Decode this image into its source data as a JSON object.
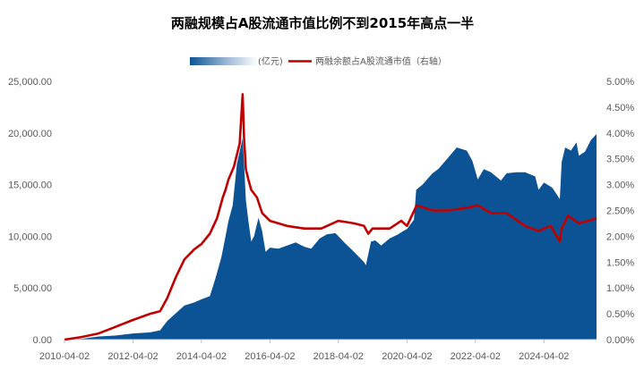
{
  "chart_data": {
    "type": "area+line",
    "title": "两融规模占A股流通市值比例不到2015年高点一半",
    "legend": {
      "position": "top",
      "items": [
        {
          "label": "(亿元)",
          "color": "#0b5394",
          "kind": "area"
        },
        {
          "label": "两融余额占A股流通市值（右轴）",
          "color": "#c00000",
          "kind": "line"
        }
      ]
    },
    "x_tick_labels": [
      "2010-04-02",
      "2012-04-02",
      "2014-04-02",
      "2016-04-02",
      "2018-04-02",
      "2020-04-02",
      "2022-04-02",
      "2024-04-02"
    ],
    "x_range": [
      "2010-04-02",
      "2025-10-15"
    ],
    "y_left": {
      "min": 0,
      "max": 25000,
      "ticks": [
        "0.00",
        "5,000.00",
        "10,000.00",
        "15,000.00",
        "20,000.00",
        "25,000.00"
      ]
    },
    "y_right": {
      "min": 0,
      "max": 5,
      "unit": "%",
      "ticks": [
        "0.00%",
        "0.50%",
        "1.00%",
        "1.50%",
        "2.00%",
        "2.50%",
        "3.00%",
        "3.50%",
        "4.00%",
        "4.50%",
        "5.00%"
      ]
    },
    "grid": false,
    "series": [
      {
        "label": "(亿元)",
        "axis": "left",
        "type": "area",
        "color": "#0b5394",
        "points": [
          [
            "2010-04-02",
            0
          ],
          [
            "2010-10-01",
            80
          ],
          [
            "2011-04-01",
            300
          ],
          [
            "2011-10-01",
            400
          ],
          [
            "2012-04-02",
            600
          ],
          [
            "2012-10-01",
            700
          ],
          [
            "2013-01-15",
            900
          ],
          [
            "2013-04-01",
            1800
          ],
          [
            "2013-10-01",
            3300
          ],
          [
            "2014-01-15",
            3600
          ],
          [
            "2014-04-02",
            3900
          ],
          [
            "2014-07-01",
            4200
          ],
          [
            "2014-09-01",
            6000
          ],
          [
            "2014-11-01",
            8000
          ],
          [
            "2014-12-15",
            10000
          ],
          [
            "2015-01-15",
            11500
          ],
          [
            "2015-03-01",
            13000
          ],
          [
            "2015-04-15",
            17000
          ],
          [
            "2015-06-15",
            19500
          ],
          [
            "2015-07-01",
            17000
          ],
          [
            "2015-07-20",
            13500
          ],
          [
            "2015-08-15",
            11500
          ],
          [
            "2015-09-15",
            9500
          ],
          [
            "2015-10-15",
            10000
          ],
          [
            "2015-12-01",
            11800
          ],
          [
            "2016-01-10",
            10500
          ],
          [
            "2016-02-15",
            8500
          ],
          [
            "2016-04-02",
            8900
          ],
          [
            "2016-07-01",
            8800
          ],
          [
            "2016-10-01",
            9100
          ],
          [
            "2017-01-01",
            9400
          ],
          [
            "2017-04-01",
            9000
          ],
          [
            "2017-06-15",
            8800
          ],
          [
            "2017-09-15",
            9800
          ],
          [
            "2017-12-01",
            10200
          ],
          [
            "2018-03-01",
            10300
          ],
          [
            "2018-06-15",
            9300
          ],
          [
            "2018-09-15",
            8500
          ],
          [
            "2018-12-31",
            7500
          ],
          [
            "2019-01-20",
            7200
          ],
          [
            "2019-03-15",
            9500
          ],
          [
            "2019-05-01",
            9600
          ],
          [
            "2019-07-01",
            9100
          ],
          [
            "2019-10-01",
            9800
          ],
          [
            "2019-12-31",
            10200
          ],
          [
            "2020-02-20",
            10500
          ],
          [
            "2020-04-02",
            10700
          ],
          [
            "2020-06-15",
            11600
          ],
          [
            "2020-07-10",
            14500
          ],
          [
            "2020-09-15",
            15000
          ],
          [
            "2020-12-31",
            16100
          ],
          [
            "2021-03-01",
            16500
          ],
          [
            "2021-06-15",
            17600
          ],
          [
            "2021-09-15",
            18600
          ],
          [
            "2021-12-31",
            18300
          ],
          [
            "2022-03-01",
            17300
          ],
          [
            "2022-04-27",
            15500
          ],
          [
            "2022-07-01",
            16500
          ],
          [
            "2022-09-15",
            16200
          ],
          [
            "2022-12-31",
            15400
          ],
          [
            "2023-03-01",
            16100
          ],
          [
            "2023-06-15",
            16200
          ],
          [
            "2023-09-15",
            16200
          ],
          [
            "2023-12-31",
            15800
          ],
          [
            "2024-02-05",
            14500
          ],
          [
            "2024-04-02",
            15200
          ],
          [
            "2024-07-01",
            14700
          ],
          [
            "2024-09-18",
            13600
          ],
          [
            "2024-10-08",
            17200
          ],
          [
            "2024-11-15",
            18600
          ],
          [
            "2025-01-15",
            18300
          ],
          [
            "2025-03-15",
            19100
          ],
          [
            "2025-04-10",
            17800
          ],
          [
            "2025-06-15",
            18200
          ],
          [
            "2025-08-15",
            19300
          ],
          [
            "2025-10-15",
            19900
          ]
        ]
      },
      {
        "label": "两融余额占A股流通市值（右轴）",
        "axis": "right",
        "type": "line",
        "color": "#c00000",
        "points": [
          [
            "2010-04-02",
            0
          ],
          [
            "2010-10-01",
            0.05
          ],
          [
            "2011-04-01",
            0.12
          ],
          [
            "2011-10-01",
            0.25
          ],
          [
            "2012-04-02",
            0.38
          ],
          [
            "2012-10-01",
            0.5
          ],
          [
            "2013-01-15",
            0.55
          ],
          [
            "2013-04-01",
            0.8
          ],
          [
            "2013-07-01",
            1.2
          ],
          [
            "2013-10-01",
            1.55
          ],
          [
            "2014-01-15",
            1.75
          ],
          [
            "2014-04-02",
            1.85
          ],
          [
            "2014-07-01",
            2.05
          ],
          [
            "2014-09-15",
            2.35
          ],
          [
            "2014-11-15",
            2.75
          ],
          [
            "2014-12-15",
            2.9
          ],
          [
            "2015-01-15",
            3.1
          ],
          [
            "2015-03-15",
            3.35
          ],
          [
            "2015-05-15",
            3.8
          ],
          [
            "2015-06-15",
            4.75
          ],
          [
            "2015-07-01",
            3.9
          ],
          [
            "2015-07-20",
            3.3
          ],
          [
            "2015-08-15",
            3.1
          ],
          [
            "2015-09-15",
            2.9
          ],
          [
            "2015-11-15",
            2.75
          ],
          [
            "2016-01-10",
            2.45
          ],
          [
            "2016-04-02",
            2.3
          ],
          [
            "2016-10-01",
            2.2
          ],
          [
            "2017-04-01",
            2.15
          ],
          [
            "2017-10-01",
            2.15
          ],
          [
            "2018-04-02",
            2.3
          ],
          [
            "2018-09-15",
            2.25
          ],
          [
            "2018-12-31",
            2.2
          ],
          [
            "2019-02-15",
            2.05
          ],
          [
            "2019-04-01",
            2.15
          ],
          [
            "2019-10-01",
            2.15
          ],
          [
            "2020-02-01",
            2.3
          ],
          [
            "2020-04-02",
            2.2
          ],
          [
            "2020-07-15",
            2.6
          ],
          [
            "2021-01-01",
            2.5
          ],
          [
            "2021-06-15",
            2.5
          ],
          [
            "2021-12-31",
            2.55
          ],
          [
            "2022-04-27",
            2.6
          ],
          [
            "2022-09-15",
            2.45
          ],
          [
            "2023-03-01",
            2.45
          ],
          [
            "2023-09-15",
            2.2
          ],
          [
            "2024-02-05",
            2.1
          ],
          [
            "2024-04-02",
            2.15
          ],
          [
            "2024-06-15",
            2.2
          ],
          [
            "2024-09-18",
            1.9
          ],
          [
            "2024-10-08",
            2.15
          ],
          [
            "2024-12-15",
            2.4
          ],
          [
            "2025-04-10",
            2.25
          ],
          [
            "2025-07-15",
            2.3
          ],
          [
            "2025-10-15",
            2.35
          ]
        ]
      }
    ]
  }
}
